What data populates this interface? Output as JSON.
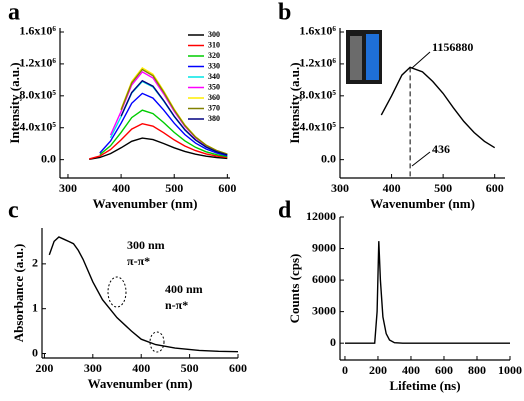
{
  "chart_data": [
    {
      "type": "line",
      "panel_label": "a",
      "x_label": "Wavenumber (nm)",
      "y_label": "Intensity (a.u.)",
      "x": [
        340,
        360,
        380,
        400,
        420,
        440,
        460,
        480,
        500,
        520,
        540,
        560,
        580,
        600
      ],
      "series": [
        {
          "name": "300",
          "color": "#000000",
          "values": [
            5000,
            27000,
            76000,
            149000,
            230000,
            270000,
            251000,
            203000,
            149000,
            103000,
            68000,
            43000,
            27000,
            16000
          ]
        },
        {
          "name": "310",
          "color": "#ff0000",
          "values": [
            9000,
            45000,
            126000,
            248000,
            383000,
            450000,
            419000,
            338000,
            248000,
            171000,
            113000,
            72000,
            45000,
            27000
          ]
        },
        {
          "name": "320",
          "color": "#00cc00",
          "values": [
            null,
            62000,
            174000,
            341000,
            527000,
            620000,
            577000,
            465000,
            341000,
            236000,
            155000,
            99000,
            62000,
            37000
          ]
        },
        {
          "name": "330",
          "color": "#0000ff",
          "values": [
            null,
            83000,
            232000,
            457000,
            706000,
            830000,
            772000,
            623000,
            457000,
            315000,
            208000,
            133000,
            83000,
            50000
          ]
        },
        {
          "name": "340",
          "color": "#00e5e5",
          "values": [
            null,
            null,
            274000,
            539000,
            833000,
            980000,
            911000,
            735000,
            539000,
            372000,
            245000,
            157000,
            98000,
            59000
          ]
        },
        {
          "name": "350",
          "color": "#ff00ff",
          "values": [
            null,
            null,
            308000,
            605000,
            935000,
            1100000,
            1023000,
            825000,
            605000,
            418000,
            275000,
            176000,
            110000,
            66000
          ]
        },
        {
          "name": "360",
          "color": "#ffee00",
          "values": [
            null,
            null,
            null,
            633000,
            978000,
            1150000,
            1070000,
            863000,
            633000,
            437000,
            288000,
            184000,
            115000,
            69000
          ]
        },
        {
          "name": "370",
          "color": "#808000",
          "values": [
            null,
            null,
            null,
            622000,
            961000,
            1130000,
            1051000,
            848000,
            622000,
            429000,
            283000,
            181000,
            113000,
            68000
          ]
        },
        {
          "name": "380",
          "color": "#000080",
          "values": [
            null,
            null,
            null,
            545000,
            842000,
            990000,
            921000,
            743000,
            545000,
            376000,
            248000,
            158000,
            99000,
            59000
          ]
        }
      ],
      "xlim": [
        285,
        605
      ],
      "xticks": [
        300,
        400,
        500,
        600
      ],
      "ylim": [
        -230000,
        1650000
      ],
      "yticks": [
        {
          "value": 0,
          "label": "0.0"
        },
        {
          "value": 400000,
          "label": "4.0x10⁵"
        },
        {
          "value": 800000,
          "label": "8.0x10⁵"
        },
        {
          "value": 1200000,
          "label": "1.2x10⁶"
        },
        {
          "value": 1600000,
          "label": "1.6x10⁶"
        }
      ],
      "legend": "upper right"
    },
    {
      "type": "line",
      "panel_label": "b",
      "x_label": "Wavenumber (nm)",
      "y_label": "Intensity (a.u.)",
      "x": [
        380,
        400,
        420,
        436,
        460,
        480,
        500,
        520,
        540,
        560,
        580,
        600
      ],
      "values": [
        560000,
        800000,
        1060000,
        1156880,
        1100000,
        980000,
        830000,
        650000,
        480000,
        340000,
        230000,
        150000
      ],
      "color": "#000000",
      "annotations": [
        "1156880",
        "436"
      ],
      "xlim": [
        300,
        620
      ],
      "xticks": [
        300,
        400,
        500,
        600
      ],
      "ylim": [
        -230000,
        1650000
      ],
      "yticks": [
        {
          "value": 0,
          "label": "0.0"
        },
        {
          "value": 400000,
          "label": "4.0x10⁵"
        },
        {
          "value": 800000,
          "label": "8.0x10⁵"
        },
        {
          "value": 1200000,
          "label": "1.2x10⁶"
        },
        {
          "value": 1600000,
          "label": "1.6x10⁶"
        }
      ]
    },
    {
      "type": "line",
      "panel_label": "c",
      "x_label": "Wavenumber (nm)",
      "y_label": "Absorbance (a.u.)",
      "x": [
        210,
        220,
        230,
        240,
        250,
        260,
        270,
        280,
        300,
        320,
        350,
        380,
        400,
        430,
        470,
        520,
        560,
        600
      ],
      "values": [
        2.2,
        2.5,
        2.6,
        2.55,
        2.5,
        2.45,
        2.3,
        2.1,
        1.6,
        1.2,
        0.8,
        0.5,
        0.32,
        0.2,
        0.12,
        0.07,
        0.05,
        0.04
      ],
      "color": "#000000",
      "annotations": [
        "300 nm",
        "π-π*",
        "400 nm",
        "n-π*"
      ],
      "xlim": [
        195,
        600
      ],
      "xticks": [
        200,
        300,
        400,
        500,
        600
      ],
      "ylim": [
        -0.1,
        2.8
      ],
      "yticks": [
        0,
        1,
        2
      ]
    },
    {
      "type": "line",
      "panel_label": "d",
      "x_label": "Lifetime (ns)",
      "y_label": "Counts (cps)",
      "x": [
        0,
        180,
        195,
        205,
        215,
        230,
        250,
        270,
        300,
        350,
        1000
      ],
      "values": [
        0,
        0,
        3000,
        9700,
        6000,
        2500,
        900,
        300,
        50,
        0,
        0
      ],
      "color": "#000000",
      "xlim": [
        -30,
        1000
      ],
      "xticks": [
        0,
        200,
        400,
        600,
        800,
        1000
      ],
      "ylim": [
        -1600,
        12000
      ],
      "yticks": [
        0,
        3000,
        6000,
        9000,
        12000
      ]
    }
  ]
}
